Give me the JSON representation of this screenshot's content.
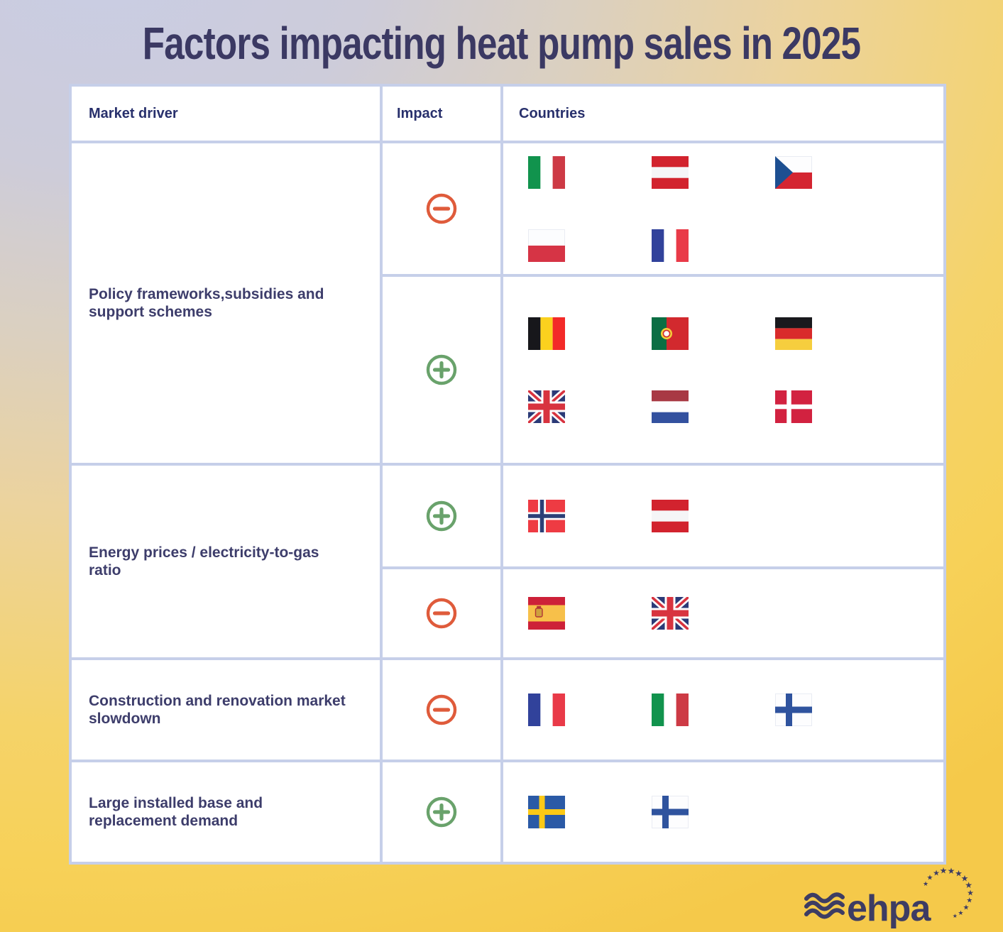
{
  "title": "Factors impacting heat pump sales in 2025",
  "table": {
    "headers": [
      "Market driver",
      "Impact",
      "Countries"
    ],
    "rows": [
      {
        "driver": "Policy frameworks,subsidies and support schemes",
        "impacts": [
          {
            "type": "negative",
            "flag_rows": [
              [
                "italy",
                "austria",
                "czech-republic"
              ],
              [
                "poland",
                "france"
              ]
            ]
          },
          {
            "type": "positive",
            "flag_rows": [
              [
                "belgium",
                "portugal",
                "germany"
              ],
              [
                "united-kingdom",
                "netherlands",
                "denmark"
              ]
            ]
          }
        ]
      },
      {
        "driver": "Energy prices / electricity-to-gas ratio",
        "impacts": [
          {
            "type": "positive",
            "flag_rows": [
              [
                "norway",
                "austria"
              ]
            ]
          },
          {
            "type": "negative",
            "flag_rows": [
              [
                "spain",
                "united-kingdom"
              ]
            ]
          }
        ]
      },
      {
        "driver": "Construction and renovation market slowdown",
        "impacts": [
          {
            "type": "negative",
            "flag_rows": [
              [
                "france",
                "italy",
                "finland"
              ]
            ]
          }
        ]
      },
      {
        "driver": "Large installed base and replacement demand",
        "impacts": [
          {
            "type": "positive",
            "flag_rows": [
              [
                "sweden",
                "finland"
              ]
            ]
          }
        ]
      }
    ]
  },
  "impact_icons": {
    "positive": "plus-circle-icon",
    "negative": "minus-circle-icon"
  },
  "colors": {
    "positive": "#69a26b",
    "negative": "#df5b3b",
    "title_text": "#3b3963",
    "table_border": "#c6cfe9",
    "navy": "#3d3c63"
  },
  "logo": {
    "text": "ehpa"
  }
}
